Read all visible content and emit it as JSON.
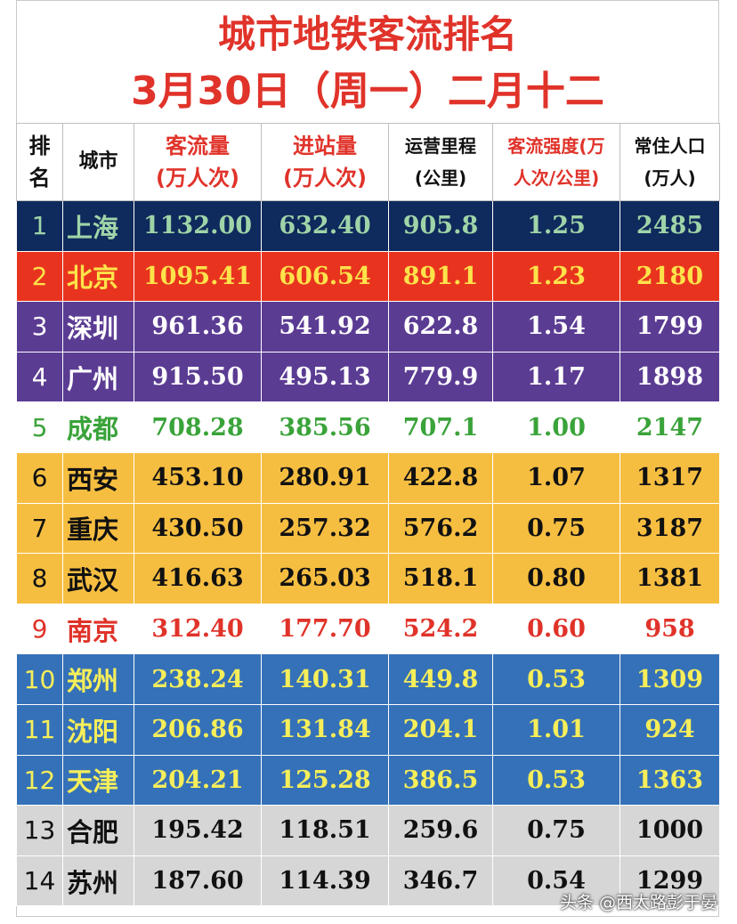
{
  "title": {
    "line1": "城市地铁客流排名",
    "line2": "3月30日（周一）二月十二"
  },
  "headers": {
    "rank": "排名",
    "city": "城市",
    "ridership": "客流量\n(万人次)",
    "entries": "进站量\n(万人次)",
    "mileage": "运营里程\n(公里)",
    "intensity": "客流强度(万\n人次/公里)",
    "population": "常住人口\n(万人)"
  },
  "colors": {
    "navy_bg": "#0f2a5c",
    "navy_text": "#9fd4a8",
    "red_bg": "#e8341f",
    "red_text": "#fde34a",
    "purple_bg": "#5b3c93",
    "purple_text": "#ffffff",
    "white_bg": "#ffffff",
    "green_text": "#3aa33a",
    "orange_bg": "#f6be41",
    "black_text": "#111111",
    "red_text2": "#e0332a",
    "blue_bg": "#3571b8",
    "yellow_text": "#f6ee5a",
    "gray_bg": "#d6d6d6"
  },
  "rows": [
    {
      "rank": "1",
      "city": "上海",
      "ridership": "1132.00",
      "entries": "632.40",
      "mileage": "905.8",
      "intensity": "1.25",
      "population": "2485",
      "bg": "#0f2a5c",
      "fg": "#9fd4a8"
    },
    {
      "rank": "2",
      "city": "北京",
      "ridership": "1095.41",
      "entries": "606.54",
      "mileage": "891.1",
      "intensity": "1.23",
      "population": "2180",
      "bg": "#e8341f",
      "fg": "#fde34a"
    },
    {
      "rank": "3",
      "city": "深圳",
      "ridership": "961.36",
      "entries": "541.92",
      "mileage": "622.8",
      "intensity": "1.54",
      "population": "1799",
      "bg": "#5b3c93",
      "fg": "#ffffff"
    },
    {
      "rank": "4",
      "city": "广州",
      "ridership": "915.50",
      "entries": "495.13",
      "mileage": "779.9",
      "intensity": "1.17",
      "population": "1898",
      "bg": "#5b3c93",
      "fg": "#ffffff"
    },
    {
      "rank": "5",
      "city": "成都",
      "ridership": "708.28",
      "entries": "385.56",
      "mileage": "707.1",
      "intensity": "1.00",
      "population": "2147",
      "bg": "#ffffff",
      "fg": "#3aa33a"
    },
    {
      "rank": "6",
      "city": "西安",
      "ridership": "453.10",
      "entries": "280.91",
      "mileage": "422.8",
      "intensity": "1.07",
      "population": "1317",
      "bg": "#f6be41",
      "fg": "#111111"
    },
    {
      "rank": "7",
      "city": "重庆",
      "ridership": "430.50",
      "entries": "257.32",
      "mileage": "576.2",
      "intensity": "0.75",
      "population": "3187",
      "bg": "#f6be41",
      "fg": "#111111"
    },
    {
      "rank": "8",
      "city": "武汉",
      "ridership": "416.63",
      "entries": "265.03",
      "mileage": "518.1",
      "intensity": "0.80",
      "population": "1381",
      "bg": "#f6be41",
      "fg": "#111111"
    },
    {
      "rank": "9",
      "city": "南京",
      "ridership": "312.40",
      "entries": "177.70",
      "mileage": "524.2",
      "intensity": "0.60",
      "population": "958",
      "bg": "#ffffff",
      "fg": "#e0332a"
    },
    {
      "rank": "10",
      "city": "郑州",
      "ridership": "238.24",
      "entries": "140.31",
      "mileage": "449.8",
      "intensity": "0.53",
      "population": "1309",
      "bg": "#3571b8",
      "fg": "#f6ee5a"
    },
    {
      "rank": "11",
      "city": "沈阳",
      "ridership": "206.86",
      "entries": "131.84",
      "mileage": "204.1",
      "intensity": "1.01",
      "population": "924",
      "bg": "#3571b8",
      "fg": "#f6ee5a"
    },
    {
      "rank": "12",
      "city": "天津",
      "ridership": "204.21",
      "entries": "125.28",
      "mileage": "386.5",
      "intensity": "0.53",
      "population": "1363",
      "bg": "#3571b8",
      "fg": "#f6ee5a"
    },
    {
      "rank": "13",
      "city": "合肥",
      "ridership": "195.42",
      "entries": "118.51",
      "mileage": "259.6",
      "intensity": "0.75",
      "population": "1000",
      "bg": "#d6d6d6",
      "fg": "#111111"
    },
    {
      "rank": "14",
      "city": "苏州",
      "ridership": "187.60",
      "entries": "114.39",
      "mileage": "346.7",
      "intensity": "0.54",
      "population": "1299",
      "bg": "#d6d6d6",
      "fg": "#111111"
    }
  ],
  "watermark": "头条 @西太路彭于晏"
}
